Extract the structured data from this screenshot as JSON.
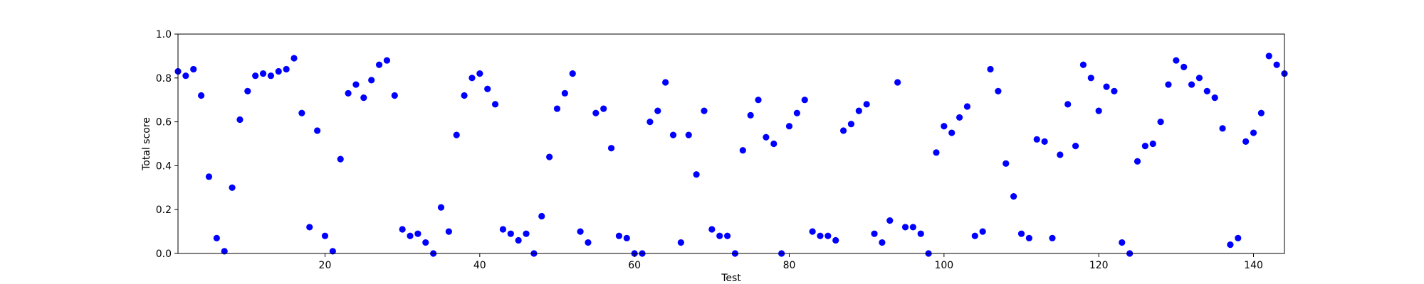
{
  "chart_data": {
    "type": "scatter",
    "title": "",
    "xlabel": "Test",
    "ylabel": "Total score",
    "xlim": [
      1,
      144
    ],
    "ylim": [
      0,
      1
    ],
    "x_ticks": [
      20,
      40,
      60,
      80,
      100,
      120,
      140
    ],
    "x_tick_labels": [
      "20",
      "40",
      "60",
      "80",
      "100",
      "120",
      "140"
    ],
    "y_ticks": [
      0,
      0.2,
      0.4,
      0.6,
      0.8,
      1.0
    ],
    "y_tick_labels": [
      "0.0",
      "0.2",
      "0.4",
      "0.6",
      "0.8",
      "1.0"
    ],
    "grid": false,
    "marker_color": "#0000ff",
    "series": [
      {
        "x": [
          1,
          2,
          3,
          4,
          5,
          6,
          7,
          8,
          9,
          10,
          11,
          12,
          13,
          14,
          15,
          16,
          17,
          18,
          19,
          20,
          21,
          22,
          23,
          24,
          25,
          26,
          27,
          28,
          29,
          30,
          31,
          32,
          33,
          34,
          35,
          36,
          37,
          38,
          39,
          40,
          41,
          42,
          43,
          44,
          45,
          46,
          47,
          48,
          49,
          50,
          51,
          52,
          53,
          54,
          55,
          56,
          57,
          58,
          59,
          60,
          61,
          62,
          63,
          64,
          65,
          66,
          67,
          68,
          69,
          70,
          71,
          72,
          73,
          74,
          75,
          76,
          77,
          78,
          79,
          80,
          81,
          82,
          83,
          84,
          85,
          86,
          87,
          88,
          89,
          90,
          91,
          92,
          93,
          94,
          95,
          96,
          97,
          98,
          99,
          100,
          101,
          102,
          103,
          104,
          105,
          106,
          107,
          108,
          109,
          110,
          111,
          112,
          113,
          114,
          115,
          116,
          117,
          118,
          119,
          120,
          121,
          122,
          123,
          124,
          125,
          126,
          127,
          128,
          129,
          130,
          131,
          132,
          133,
          134,
          135,
          136,
          137,
          138,
          139,
          140,
          141,
          142,
          143,
          144
        ],
        "y": [
          0.83,
          0.81,
          0.84,
          0.72,
          0.35,
          0.07,
          0.01,
          0.3,
          0.61,
          0.74,
          0.81,
          0.82,
          0.81,
          0.83,
          0.84,
          0.89,
          0.64,
          0.12,
          0.56,
          0.08,
          0.01,
          0.43,
          0.73,
          0.77,
          0.71,
          0.79,
          0.86,
          0.88,
          0.72,
          0.11,
          0.08,
          0.09,
          0.05,
          0.0,
          0.21,
          0.1,
          0.54,
          0.72,
          0.8,
          0.82,
          0.75,
          0.68,
          0.11,
          0.09,
          0.06,
          0.09,
          0.0,
          0.17,
          0.44,
          0.66,
          0.73,
          0.82,
          0.1,
          0.05,
          0.64,
          0.66,
          0.48,
          0.08,
          0.07,
          0.0,
          0.0,
          0.6,
          0.65,
          0.78,
          0.54,
          0.05,
          0.54,
          0.36,
          0.65,
          0.11,
          0.08,
          0.08,
          0.0,
          0.47,
          0.63,
          0.7,
          0.53,
          0.5,
          0.0,
          0.58,
          0.64,
          0.7,
          0.1,
          0.08,
          0.08,
          0.06,
          0.56,
          0.59,
          0.65,
          0.68,
          0.09,
          0.05,
          0.15,
          0.78,
          0.12,
          0.12,
          0.09,
          0.0,
          0.46,
          0.58,
          0.55,
          0.62,
          0.67,
          0.08,
          0.1,
          0.84,
          0.74,
          0.41,
          0.26,
          0.09,
          0.07,
          0.52,
          0.51,
          0.07,
          0.45,
          0.68,
          0.49,
          0.86,
          0.8,
          0.65,
          0.76,
          0.74,
          0.05,
          0.0,
          0.42,
          0.49,
          0.5,
          0.6,
          0.77,
          0.88,
          0.85,
          0.77,
          0.8,
          0.74,
          0.71,
          0.57,
          0.04,
          0.07,
          0.51,
          0.55,
          0.64,
          0.9,
          0.86,
          0.82
        ]
      }
    ]
  }
}
